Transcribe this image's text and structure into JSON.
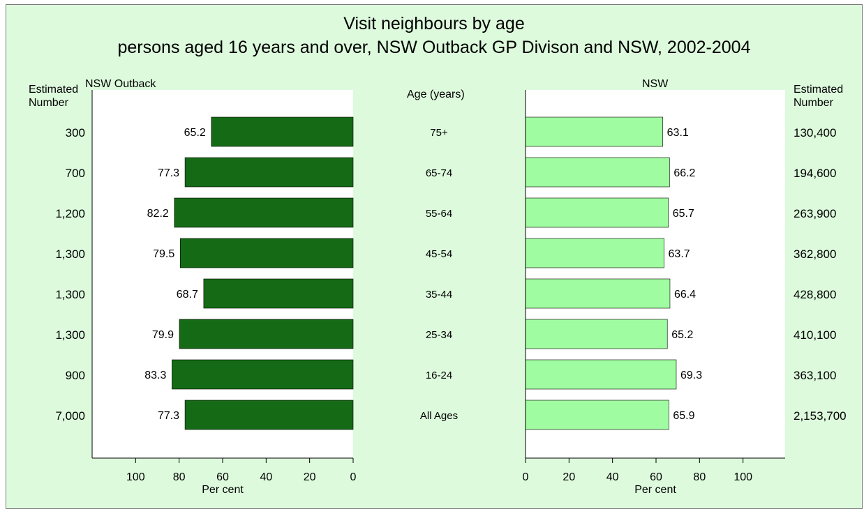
{
  "chart_data": {
    "type": "bar",
    "title": "Visit neighbours by age",
    "subtitle": "persons aged 16 years and over, NSW Outback GP Divison and NSW, 2002-2004",
    "category_header": "Age (years)",
    "categories": [
      "75+",
      "65-74",
      "55-64",
      "45-54",
      "35-44",
      "25-34",
      "16-24",
      "All Ages"
    ],
    "xlabel": "Per cent",
    "xlim": [
      0,
      120
    ],
    "xticks": [
      0,
      20,
      40,
      60,
      80,
      100
    ],
    "left_count_header": "Estimated\nNumber",
    "right_count_header": "Estimated\nNumber",
    "series": [
      {
        "name": "NSW Outback",
        "color": "#156b15",
        "values": [
          65.2,
          77.3,
          82.2,
          79.5,
          68.7,
          79.9,
          83.3,
          77.3
        ],
        "value_labels": [
          "65.2",
          "77.3",
          "82.2",
          "79.5",
          "68.7",
          "79.9",
          "83.3",
          "77.3"
        ],
        "estimated_numbers": [
          "300",
          "700",
          "1,200",
          "1,300",
          "1,300",
          "1,300",
          "900",
          "7,000"
        ]
      },
      {
        "name": "NSW",
        "color": "#a0fca0",
        "values": [
          63.1,
          66.2,
          65.7,
          63.7,
          66.4,
          65.2,
          69.3,
          65.9
        ],
        "value_labels": [
          "63.1",
          "66.2",
          "65.7",
          "63.7",
          "66.4",
          "65.2",
          "69.3",
          "65.9"
        ],
        "estimated_numbers": [
          "130,400",
          "194,600",
          "263,900",
          "362,800",
          "428,800",
          "410,100",
          "363,100",
          "2,153,700"
        ]
      }
    ]
  }
}
